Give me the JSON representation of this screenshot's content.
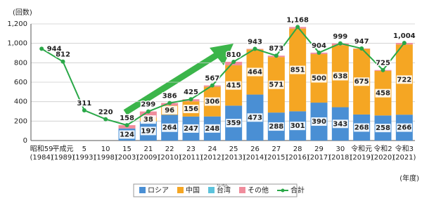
{
  "chart_data": {
    "type": "bar",
    "stacked": true,
    "y_label": "(回数)",
    "x_unit": "(年度)",
    "categories": [
      "昭和59",
      "平成元",
      "5",
      "10",
      "15",
      "21",
      "22",
      "23",
      "24",
      "25",
      "26",
      "27",
      "28",
      "29",
      "30",
      "令和元",
      "令和2",
      "令和3"
    ],
    "category_years": [
      "(1984)",
      "(1989)",
      "(1993)",
      "(1998)",
      "(2003)",
      "(2009)",
      "(2010)",
      "(2011)",
      "(2012)",
      "(2013)",
      "(2014)",
      "(2015)",
      "(2016)",
      "(2017)",
      "(2018)",
      "(2019)",
      "(2020)",
      "(2021)"
    ],
    "ylim": [
      0,
      1200
    ],
    "yticks": [
      0,
      200,
      400,
      600,
      800,
      {
        "value": 1000,
        "label": "1,000"
      },
      {
        "value": 1200,
        "label": "1,200"
      }
    ],
    "grid": true,
    "series": [
      {
        "name": "ロシア",
        "color": "#4a8fd4",
        "labeled": true,
        "values": [
          null,
          null,
          null,
          null,
          124,
          197,
          264,
          247,
          248,
          359,
          473,
          288,
          301,
          390,
          343,
          268,
          258,
          266
        ]
      },
      {
        "name": "中国",
        "color": "#f5a623",
        "labeled": true,
        "values": [
          null,
          null,
          null,
          null,
          null,
          38,
          96,
          156,
          306,
          415,
          464,
          571,
          851,
          500,
          638,
          675,
          458,
          722
        ]
      },
      {
        "name": "台湾",
        "ruby": "たいわん",
        "color": "#5cc3dc",
        "values": [
          null,
          null,
          null,
          null,
          null,
          null,
          null,
          null,
          null,
          null,
          null,
          null,
          null,
          null,
          null,
          null,
          null,
          null
        ]
      },
      {
        "name": "その他",
        "color": "#f08c9c",
        "values": [
          null,
          null,
          null,
          null,
          34,
          64,
          26,
          22,
          13,
          36,
          6,
          14,
          16,
          14,
          18,
          4,
          9,
          16
        ]
      },
      {
        "name": "合計",
        "type": "line",
        "color": "#2aa848",
        "labeled": true,
        "values": [
          944,
          812,
          311,
          220,
          158,
          299,
          386,
          425,
          567,
          810,
          943,
          873,
          1168,
          904,
          999,
          947,
          725,
          1004
        ],
        "value_labels": [
          "944",
          "812",
          "311",
          "220",
          "158",
          "299",
          "386",
          "425",
          "567",
          "810",
          "943",
          "873",
          "1,168",
          "904",
          "999",
          "947",
          "725",
          "1,004"
        ]
      }
    ]
  }
}
